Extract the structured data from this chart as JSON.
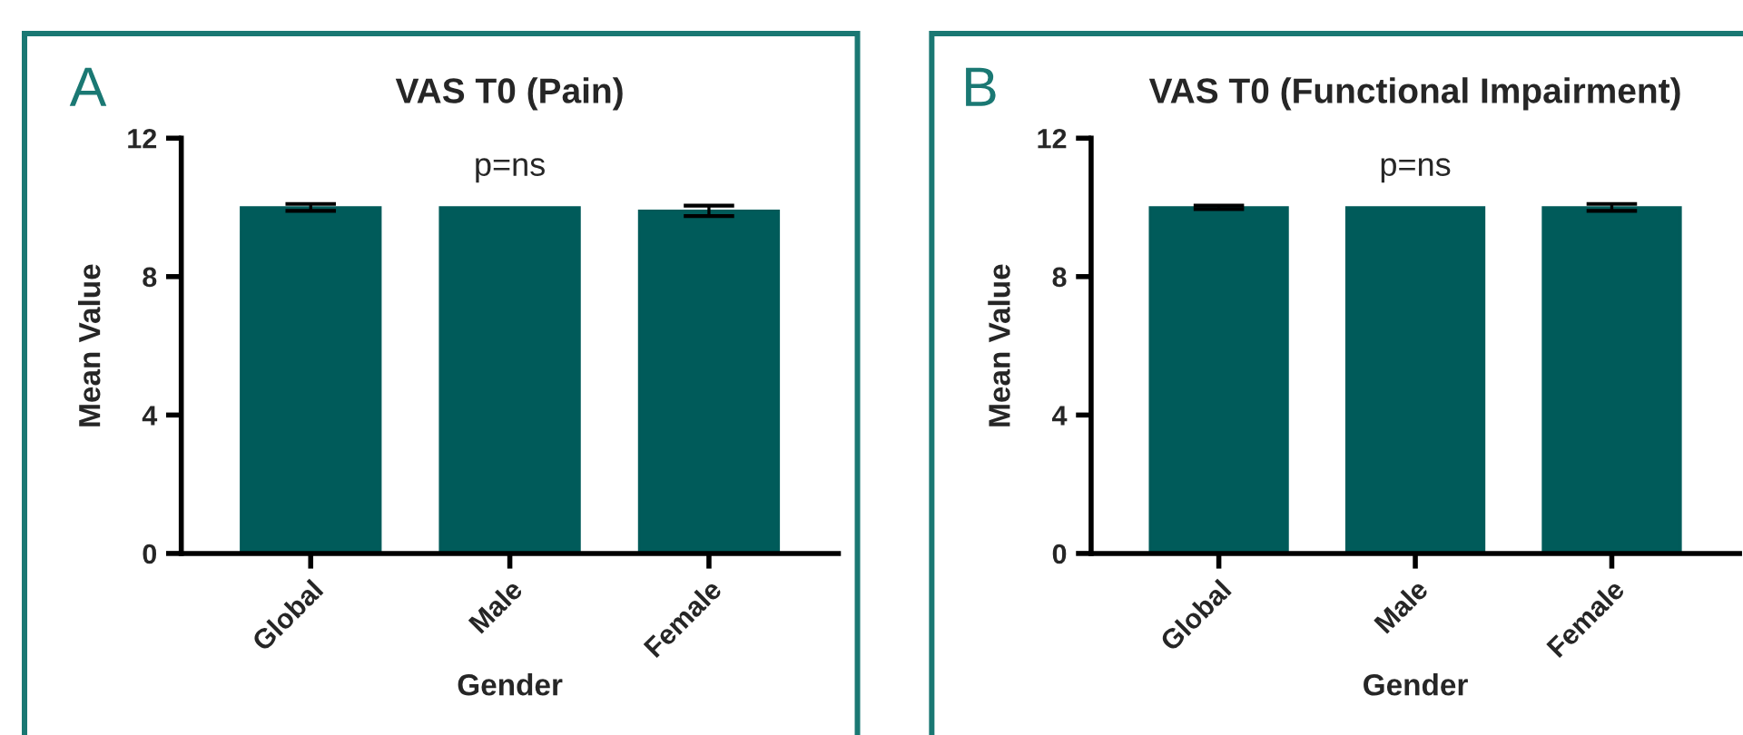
{
  "chart_data": [
    {
      "type": "bar",
      "title": "VAS T0 (Pain)",
      "xlabel": "Gender",
      "ylabel": "Mean Value",
      "categories": [
        "Global",
        "Male",
        "Female"
      ],
      "values": [
        10,
        10,
        9.9
      ],
      "errors": [
        0.1,
        null,
        0.15
      ],
      "color": "#005b5a",
      "ylim": [
        0,
        12
      ],
      "yticks": [
        0,
        4,
        8,
        12
      ],
      "grid": false,
      "annotations": [
        "A",
        "p=ns"
      ]
    },
    {
      "type": "bar",
      "title": "VAS T0 (Functional Impairment)",
      "xlabel": "Gender",
      "ylabel": "Mean Value",
      "categories": [
        "Global",
        "Male",
        "Female"
      ],
      "values": [
        10,
        10,
        10
      ],
      "errors": [
        0.05,
        null,
        0.1
      ],
      "color": "#005b5a",
      "ylim": [
        0,
        12
      ],
      "yticks": [
        0,
        4,
        8,
        12
      ],
      "grid": false,
      "annotations": [
        "B",
        "p=ns"
      ]
    }
  ]
}
